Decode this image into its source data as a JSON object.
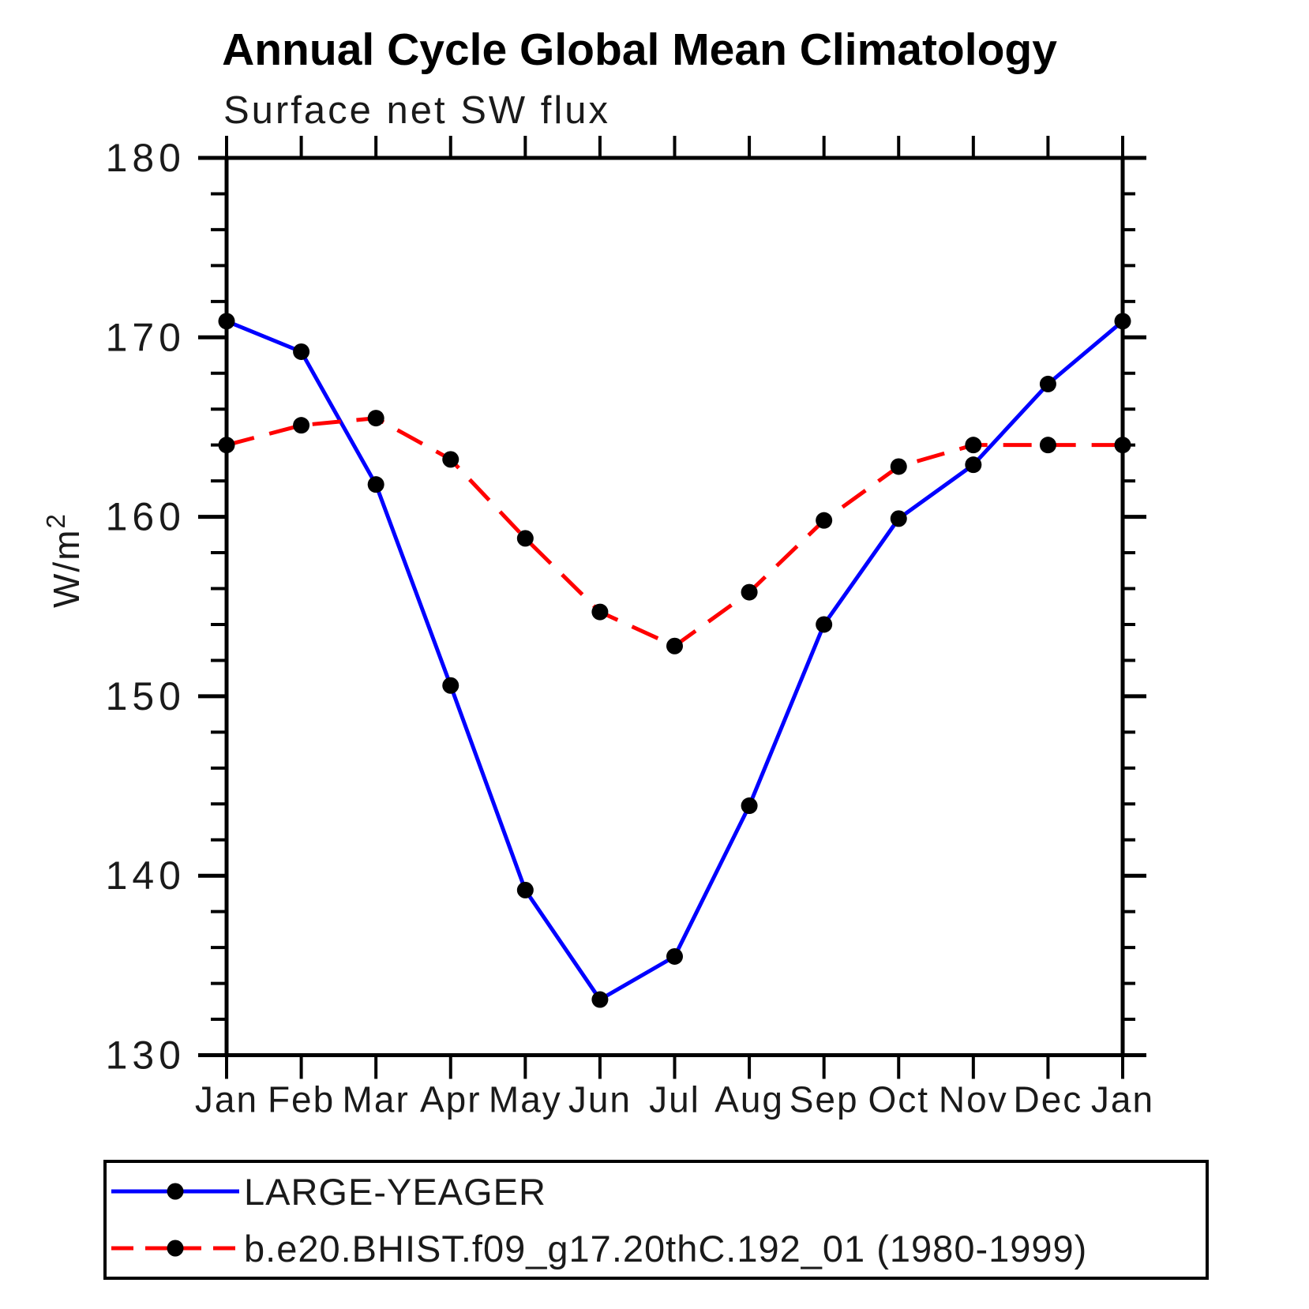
{
  "title": "Annual Cycle Global Mean Climatology",
  "subtitle": "Surface net SW flux",
  "y_axis": {
    "label_base": "W/m",
    "label_sup": "2",
    "tick_labels": [
      "180",
      "170",
      "160",
      "150",
      "140",
      "130"
    ]
  },
  "x_axis": {
    "tick_labels": [
      "Jan",
      "Feb",
      "Mar",
      "Apr",
      "May",
      "Jun",
      "Jul",
      "Aug",
      "Sep",
      "Oct",
      "Nov",
      "Dec",
      "Jan"
    ]
  },
  "colors": {
    "series1": "#0000FF",
    "series2": "#FF0000",
    "marker": "#000000",
    "axis": "#000000",
    "text": "#1a1a1a"
  },
  "chart_data": {
    "type": "line",
    "title": "Annual Cycle Global Mean Climatology",
    "subtitle": "Surface net SW flux",
    "ylabel": "W/m²",
    "xlabel": "",
    "categories": [
      "Jan",
      "Feb",
      "Mar",
      "Apr",
      "May",
      "Jun",
      "Jul",
      "Aug",
      "Sep",
      "Oct",
      "Nov",
      "Dec",
      "Jan"
    ],
    "series": [
      {
        "name": "LARGE-YEAGER",
        "line_style": "solid",
        "color": "#0000FF",
        "marker": "filled-circle",
        "marker_color": "#000000",
        "values": [
          170.9,
          169.2,
          161.8,
          150.6,
          139.2,
          133.1,
          135.5,
          143.9,
          154.0,
          159.9,
          162.9,
          167.4,
          170.9
        ]
      },
      {
        "name": "b.e20.BHIST.f09_g17.20thC.192_01 (1980-1999)",
        "line_style": "dashed",
        "color": "#FF0000",
        "marker": "filled-circle",
        "marker_color": "#000000",
        "values": [
          164.0,
          165.1,
          165.5,
          163.2,
          158.8,
          154.7,
          152.8,
          155.8,
          159.8,
          162.8,
          164.0,
          164.0,
          164.0
        ]
      }
    ],
    "ylim": [
      130,
      180
    ],
    "yticks_major": [
      130,
      140,
      150,
      160,
      170,
      180
    ],
    "ytick_minor_step": 2,
    "grid": false,
    "tick_style": "outward-mirrored-frame",
    "legend_position": "bottom"
  },
  "legend": {
    "entries": [
      {
        "label": "LARGE-YEAGER",
        "line_style": "solid",
        "color": "#0000FF"
      },
      {
        "label": "b.e20.BHIST.f09_g17.20thC.192_01 (1980-1999)",
        "line_style": "dashed",
        "color": "#FF0000"
      }
    ]
  }
}
